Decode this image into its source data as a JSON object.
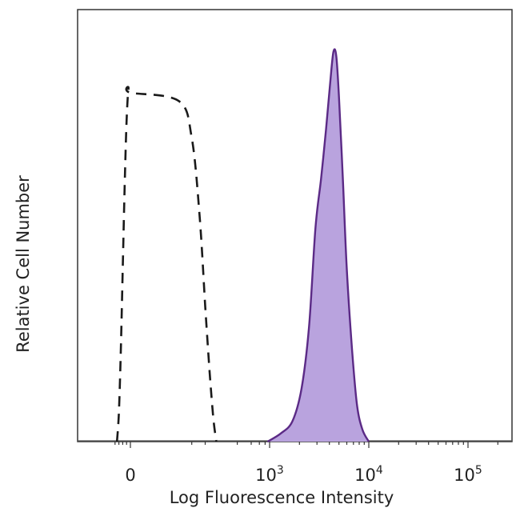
{
  "chart_data": {
    "type": "area",
    "xlabel": "Log Fluorescence Intensity",
    "ylabel": "Relative Cell Number",
    "x_scale": "biexponential",
    "xlim": [
      -100,
      300000
    ],
    "ylim": [
      0,
      1
    ],
    "grid": false,
    "legend": "none",
    "ticks": [
      {
        "value": 0,
        "base": "0",
        "exp": ""
      },
      {
        "value": 1000,
        "base": "10",
        "exp": "3"
      },
      {
        "value": 10000,
        "base": "10",
        "exp": "4"
      },
      {
        "value": 100000,
        "base": "10",
        "exp": "5"
      }
    ],
    "series": [
      {
        "style": "dashed",
        "color": "#1a1a1a",
        "fill": "none",
        "points": [
          [
            -70,
            0.0
          ],
          [
            -60,
            0.07
          ],
          [
            -50,
            0.22
          ],
          [
            -40,
            0.42
          ],
          [
            -30,
            0.62
          ],
          [
            -20,
            0.78
          ],
          [
            -10,
            0.86
          ],
          [
            0,
            0.85
          ],
          [
            10,
            0.83
          ],
          [
            20,
            0.74
          ],
          [
            30,
            0.55
          ],
          [
            40,
            0.33
          ],
          [
            50,
            0.17
          ],
          [
            60,
            0.06
          ],
          [
            70,
            0.0
          ]
        ]
      },
      {
        "style": "filled",
        "color": "#5b2a86",
        "fill": "#b9a3de",
        "points": [
          [
            900,
            0.0
          ],
          [
            1300,
            0.02
          ],
          [
            1700,
            0.05
          ],
          [
            2100,
            0.13
          ],
          [
            2500,
            0.28
          ],
          [
            2900,
            0.52
          ],
          [
            3300,
            0.64
          ],
          [
            3700,
            0.76
          ],
          [
            4100,
            0.88
          ],
          [
            4400,
            0.95
          ],
          [
            4700,
            0.94
          ],
          [
            5000,
            0.84
          ],
          [
            5500,
            0.63
          ],
          [
            6000,
            0.42
          ],
          [
            6800,
            0.22
          ],
          [
            7600,
            0.09
          ],
          [
            8600,
            0.03
          ],
          [
            10000,
            0.0
          ]
        ]
      }
    ]
  }
}
